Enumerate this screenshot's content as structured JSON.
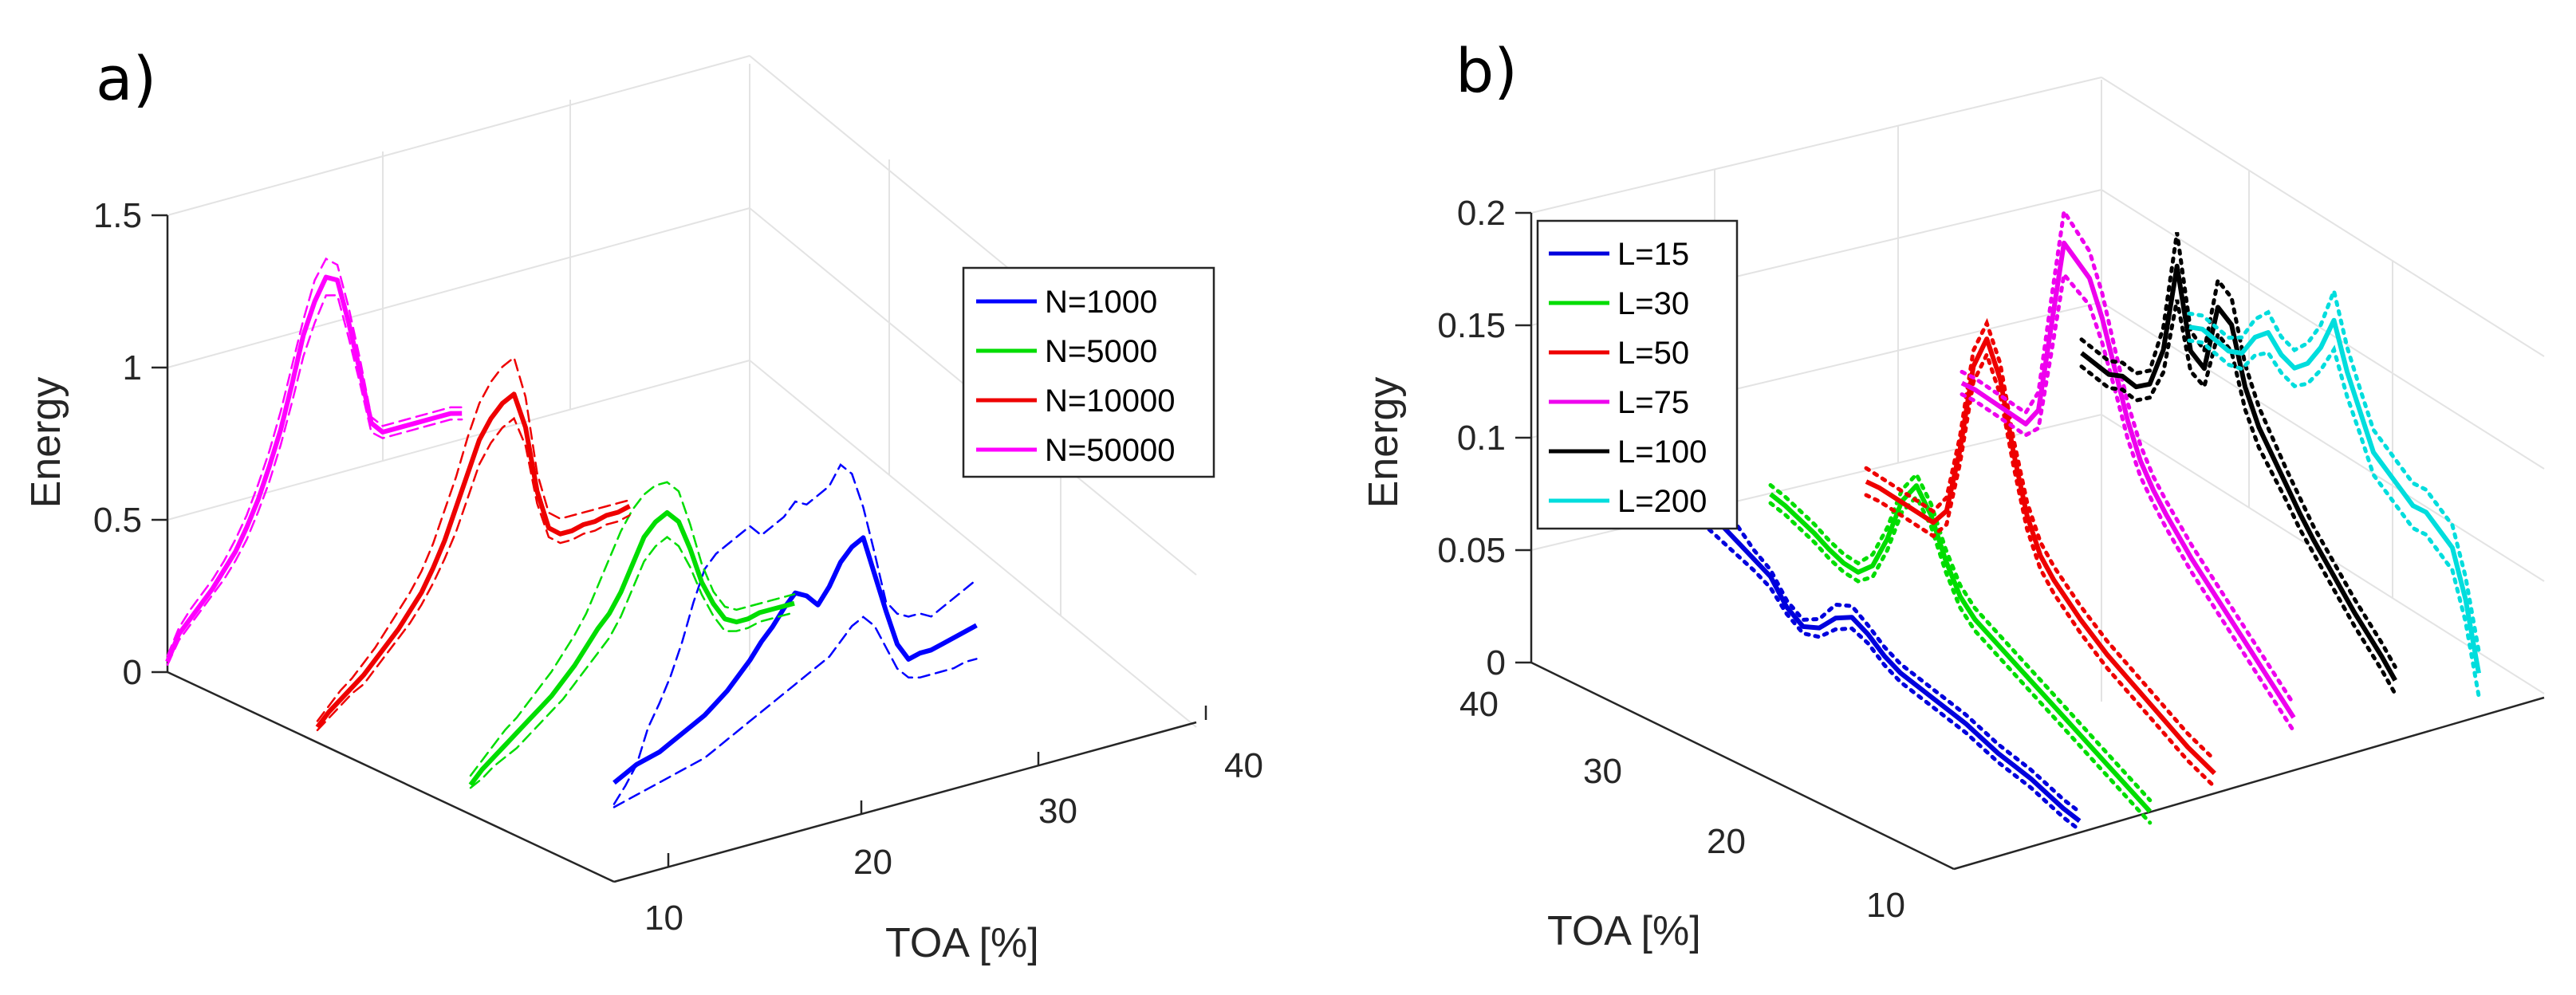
{
  "chart_data": [
    {
      "type": "line",
      "panel_label": "a)",
      "zlabel": "Energy",
      "xlabel": "TOA [%]",
      "z_ticks": [
        "0",
        "0.5",
        "1",
        "1.5"
      ],
      "x_ticks": [
        "10",
        "20",
        "30",
        "40"
      ],
      "zlim": [
        0,
        1.5
      ],
      "xlim": [
        7,
        42
      ],
      "band_style": "dashed",
      "legend_position": "right",
      "series": [
        {
          "name": "N=1000",
          "color": "#0000ff",
          "mean": [
            0.1,
            0.12,
            0.14,
            0.15,
            0.16,
            0.18,
            0.2,
            0.22,
            0.24,
            0.27,
            0.3,
            0.34,
            0.38,
            0.43,
            0.47,
            0.52,
            0.56,
            0.54,
            0.5,
            0.55,
            0.62,
            0.66,
            0.68,
            0.55,
            0.42,
            0.3,
            0.24,
            0.25,
            0.25,
            0.26,
            0.27,
            0.28,
            0.29
          ],
          "upper": [
            0.03,
            0.08,
            0.14,
            0.25,
            0.32,
            0.4,
            0.5,
            0.62,
            0.72,
            0.76,
            0.78,
            0.8,
            0.82,
            0.78,
            0.8,
            0.82,
            0.86,
            0.84,
            0.86,
            0.88,
            0.94,
            0.9,
            0.78,
            0.62,
            0.45,
            0.4,
            0.38,
            0.38,
            0.36,
            0.38,
            0.4,
            0.42,
            0.44
          ],
          "lower": [
            0.02,
            0.03,
            0.04,
            0.05,
            0.06,
            0.07,
            0.08,
            0.09,
            0.1,
            0.12,
            0.14,
            0.16,
            0.18,
            0.2,
            0.22,
            0.24,
            0.26,
            0.28,
            0.3,
            0.32,
            0.36,
            0.4,
            0.42,
            0.38,
            0.3,
            0.22,
            0.18,
            0.17,
            0.17,
            0.17,
            0.17,
            0.18,
            0.18
          ]
        },
        {
          "name": "N=5000",
          "color": "#00dd00",
          "mean": [
            0.02,
            0.06,
            0.09,
            0.12,
            0.15,
            0.18,
            0.21,
            0.24,
            0.28,
            0.32,
            0.37,
            0.42,
            0.46,
            0.52,
            0.6,
            0.68,
            0.72,
            0.74,
            0.7,
            0.6,
            0.48,
            0.4,
            0.34,
            0.32,
            0.32,
            0.33,
            0.33,
            0.33,
            0.33
          ],
          "upper": [
            0.05,
            0.09,
            0.13,
            0.17,
            0.2,
            0.24,
            0.28,
            0.32,
            0.37,
            0.42,
            0.48,
            0.56,
            0.64,
            0.72,
            0.78,
            0.82,
            0.84,
            0.84,
            0.8,
            0.68,
            0.54,
            0.44,
            0.38,
            0.36,
            0.36,
            0.36,
            0.36,
            0.36,
            0.36
          ],
          "lower": [
            0.01,
            0.03,
            0.06,
            0.08,
            0.1,
            0.13,
            0.16,
            0.19,
            0.22,
            0.26,
            0.3,
            0.34,
            0.38,
            0.44,
            0.52,
            0.6,
            0.64,
            0.66,
            0.62,
            0.54,
            0.44,
            0.36,
            0.3,
            0.29,
            0.29,
            0.3,
            0.3,
            0.3,
            0.3
          ]
        },
        {
          "name": "N=10000",
          "color": "#ee0000",
          "mean": [
            0.0,
            0.04,
            0.07,
            0.1,
            0.13,
            0.17,
            0.21,
            0.25,
            0.3,
            0.35,
            0.42,
            0.5,
            0.6,
            0.7,
            0.8,
            0.86,
            0.9,
            0.92,
            0.8,
            0.58,
            0.45,
            0.42,
            0.42,
            0.43,
            0.43,
            0.44,
            0.44,
            0.45
          ],
          "upper": [
            0.02,
            0.06,
            0.1,
            0.13,
            0.17,
            0.21,
            0.26,
            0.31,
            0.36,
            0.42,
            0.5,
            0.6,
            0.7,
            0.82,
            0.92,
            0.98,
            1.02,
            1.04,
            0.9,
            0.64,
            0.5,
            0.47,
            0.47,
            0.47,
            0.47,
            0.47,
            0.47,
            0.47
          ],
          "lower": [
            -0.01,
            0.02,
            0.05,
            0.08,
            0.1,
            0.14,
            0.18,
            0.22,
            0.26,
            0.31,
            0.37,
            0.44,
            0.52,
            0.62,
            0.72,
            0.78,
            0.82,
            0.84,
            0.74,
            0.54,
            0.42,
            0.39,
            0.39,
            0.4,
            0.4,
            0.41,
            0.41,
            0.42
          ]
        },
        {
          "name": "N=50000",
          "color": "#ff00ff",
          "mean": [
            0.0,
            0.08,
            0.12,
            0.16,
            0.2,
            0.25,
            0.3,
            0.37,
            0.45,
            0.55,
            0.66,
            0.8,
            0.95,
            1.05,
            1.12,
            1.1,
            0.95,
            0.78,
            0.6,
            0.56,
            0.56,
            0.56,
            0.56,
            0.56,
            0.56,
            0.56,
            0.55
          ],
          "upper": [
            0.02,
            0.1,
            0.15,
            0.19,
            0.23,
            0.28,
            0.34,
            0.41,
            0.5,
            0.6,
            0.72,
            0.86,
            1.0,
            1.12,
            1.18,
            1.15,
            1.0,
            0.82,
            0.62,
            0.58,
            0.58,
            0.58,
            0.58,
            0.58,
            0.58,
            0.58,
            0.57
          ],
          "lower": [
            -0.01,
            0.06,
            0.1,
            0.14,
            0.18,
            0.22,
            0.27,
            0.33,
            0.41,
            0.5,
            0.61,
            0.74,
            0.88,
            0.98,
            1.06,
            1.05,
            0.9,
            0.74,
            0.57,
            0.54,
            0.54,
            0.54,
            0.54,
            0.54,
            0.54,
            0.54,
            0.53
          ]
        }
      ]
    },
    {
      "type": "line",
      "panel_label": "b)",
      "zlabel": "Energy",
      "xlabel": "TOA [%]",
      "z_ticks": [
        "0",
        "0.05",
        "0.1",
        "0.15",
        "0.2"
      ],
      "x_ticks": [
        "40",
        "30",
        "20",
        "10"
      ],
      "zlim": [
        0,
        0.2
      ],
      "xlim": [
        5,
        45
      ],
      "band_style": "dotted",
      "legend_position": "left",
      "series": [
        {
          "name": "L=15",
          "color": "#0000dd",
          "mean": [
            0.06,
            0.055,
            0.052,
            0.048,
            0.044,
            0.04,
            0.03,
            0.025,
            0.028,
            0.036,
            0.04,
            0.036,
            0.03,
            0.026,
            0.024,
            0.022,
            0.02,
            0.018,
            0.015,
            0.012,
            0.01,
            0.008,
            0.005,
            0.002,
            0.0
          ],
          "upper": [
            0.07,
            0.068,
            0.062,
            0.055,
            0.048,
            0.043,
            0.033,
            0.028,
            0.032,
            0.042,
            0.045,
            0.04,
            0.034,
            0.03,
            0.028,
            0.026,
            0.024,
            0.022,
            0.019,
            0.016,
            0.014,
            0.012,
            0.009,
            0.006,
            0.004
          ],
          "lower": [
            0.052,
            0.048,
            0.045,
            0.042,
            0.039,
            0.035,
            0.027,
            0.022,
            0.024,
            0.031,
            0.035,
            0.032,
            0.026,
            0.022,
            0.02,
            0.018,
            0.016,
            0.014,
            0.011,
            0.008,
            0.006,
            0.004,
            0.001,
            -0.002,
            -0.004
          ]
        },
        {
          "name": "L=30",
          "color": "#00dd00",
          "mean": [
            0.06,
            0.058,
            0.055,
            0.052,
            0.048,
            0.045,
            0.044,
            0.05,
            0.065,
            0.085,
            0.095,
            0.085,
            0.068,
            0.055,
            0.048,
            0.044,
            0.04,
            0.036,
            0.032,
            0.028,
            0.024,
            0.02,
            0.016,
            0.012,
            0.008,
            0.004,
            0.0
          ],
          "upper": [
            0.064,
            0.062,
            0.059,
            0.056,
            0.052,
            0.049,
            0.048,
            0.055,
            0.07,
            0.09,
            0.1,
            0.09,
            0.073,
            0.06,
            0.053,
            0.049,
            0.045,
            0.041,
            0.037,
            0.033,
            0.029,
            0.025,
            0.021,
            0.017,
            0.013,
            0.009,
            0.005
          ],
          "lower": [
            0.056,
            0.054,
            0.051,
            0.048,
            0.044,
            0.041,
            0.04,
            0.045,
            0.06,
            0.08,
            0.09,
            0.08,
            0.063,
            0.05,
            0.043,
            0.039,
            0.035,
            0.031,
            0.027,
            0.023,
            0.019,
            0.015,
            0.011,
            0.007,
            0.003,
            -0.001,
            -0.005
          ]
        },
        {
          "name": "L=50",
          "color": "#ee0000",
          "mean": [
            0.056,
            0.056,
            0.055,
            0.054,
            0.053,
            0.052,
            0.06,
            0.09,
            0.13,
            0.145,
            0.13,
            0.1,
            0.075,
            0.06,
            0.052,
            0.046,
            0.04,
            0.035,
            0.03,
            0.026,
            0.022,
            0.018,
            0.014,
            0.01,
            0.006,
            0.003,
            0.0
          ],
          "upper": [
            0.062,
            0.061,
            0.06,
            0.059,
            0.058,
            0.057,
            0.066,
            0.096,
            0.137,
            0.152,
            0.137,
            0.106,
            0.081,
            0.066,
            0.058,
            0.052,
            0.046,
            0.041,
            0.036,
            0.032,
            0.028,
            0.024,
            0.02,
            0.016,
            0.012,
            0.009,
            0.006
          ],
          "lower": [
            0.05,
            0.05,
            0.049,
            0.048,
            0.047,
            0.046,
            0.054,
            0.084,
            0.123,
            0.138,
            0.123,
            0.094,
            0.069,
            0.054,
            0.046,
            0.04,
            0.034,
            0.029,
            0.024,
            0.02,
            0.016,
            0.012,
            0.008,
            0.004,
            0.0,
            -0.003,
            -0.006
          ]
        },
        {
          "name": "L=75",
          "color": "#ee00ee",
          "mean": [
            0.075,
            0.075,
            0.074,
            0.073,
            0.072,
            0.071,
            0.08,
            0.12,
            0.16,
            0.155,
            0.15,
            0.135,
            0.115,
            0.095,
            0.08,
            0.07,
            0.062,
            0.055,
            0.048,
            0.042,
            0.036,
            0.03,
            0.024,
            0.018,
            0.012,
            0.006,
            0.0
          ],
          "upper": [
            0.08,
            0.08,
            0.079,
            0.078,
            0.077,
            0.076,
            0.088,
            0.132,
            0.174,
            0.168,
            0.162,
            0.146,
            0.124,
            0.103,
            0.087,
            0.076,
            0.068,
            0.061,
            0.054,
            0.048,
            0.042,
            0.036,
            0.03,
            0.024,
            0.018,
            0.012,
            0.006
          ],
          "lower": [
            0.07,
            0.07,
            0.069,
            0.068,
            0.067,
            0.066,
            0.072,
            0.108,
            0.146,
            0.142,
            0.138,
            0.124,
            0.106,
            0.087,
            0.073,
            0.064,
            0.056,
            0.049,
            0.042,
            0.036,
            0.03,
            0.024,
            0.018,
            0.012,
            0.006,
            0.0,
            -0.006
          ]
        },
        {
          "name": "L=100",
          "color": "#000000",
          "mean": [
            0.082,
            0.08,
            0.078,
            0.08,
            0.078,
            0.082,
            0.1,
            0.14,
            0.105,
            0.1,
            0.13,
            0.125,
            0.1,
            0.085,
            0.075,
            0.065,
            0.055,
            0.046,
            0.038,
            0.03,
            0.022,
            0.015,
            0.008,
            0.0
          ],
          "upper": [
            0.088,
            0.086,
            0.084,
            0.086,
            0.084,
            0.088,
            0.11,
            0.155,
            0.114,
            0.108,
            0.142,
            0.137,
            0.11,
            0.094,
            0.083,
            0.072,
            0.062,
            0.052,
            0.044,
            0.036,
            0.028,
            0.021,
            0.014,
            0.006
          ],
          "lower": [
            0.076,
            0.074,
            0.072,
            0.074,
            0.072,
            0.076,
            0.09,
            0.125,
            0.096,
            0.092,
            0.118,
            0.113,
            0.09,
            0.076,
            0.067,
            0.058,
            0.048,
            0.04,
            0.032,
            0.024,
            0.016,
            0.009,
            0.002,
            -0.006
          ]
        },
        {
          "name": "L=200",
          "color": "#00dddd",
          "mean": [
            0.09,
            0.092,
            0.09,
            0.088,
            0.09,
            0.1,
            0.105,
            0.098,
            0.095,
            0.1,
            0.11,
            0.125,
            0.105,
            0.09,
            0.075,
            0.07,
            0.065,
            0.06,
            0.06,
            0.055,
            0.05,
            0.03,
            0.0
          ],
          "upper": [
            0.096,
            0.098,
            0.096,
            0.094,
            0.097,
            0.108,
            0.114,
            0.106,
            0.103,
            0.109,
            0.12,
            0.138,
            0.116,
            0.1,
            0.085,
            0.08,
            0.075,
            0.07,
            0.07,
            0.065,
            0.06,
            0.04,
            0.01
          ],
          "lower": [
            0.084,
            0.086,
            0.084,
            0.082,
            0.083,
            0.092,
            0.096,
            0.09,
            0.087,
            0.091,
            0.1,
            0.112,
            0.094,
            0.08,
            0.065,
            0.06,
            0.055,
            0.05,
            0.05,
            0.045,
            0.04,
            0.02,
            -0.01
          ]
        }
      ]
    }
  ]
}
